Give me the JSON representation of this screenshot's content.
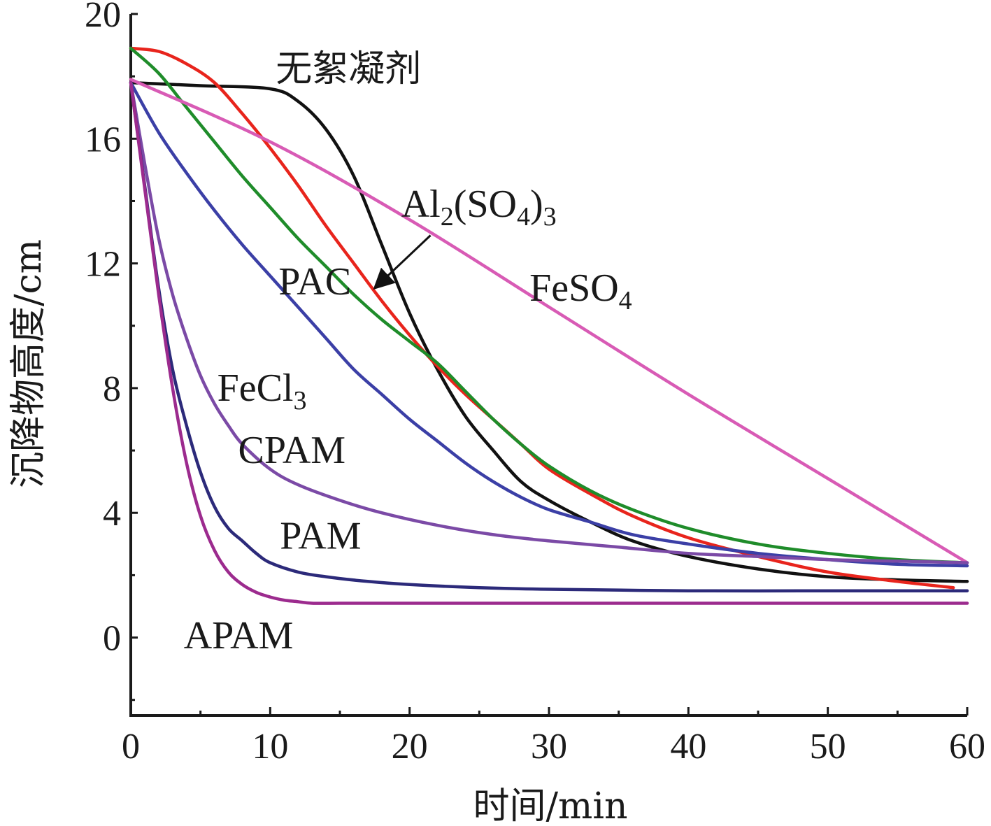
{
  "chart_data": {
    "type": "line",
    "title": "",
    "xlabel": "时间/min",
    "ylabel": "沉降物高度/cm",
    "xlim": [
      0,
      60
    ],
    "ylim": [
      -2.5,
      20
    ],
    "xticks": [
      0,
      10,
      20,
      30,
      40,
      50,
      60
    ],
    "yticks": [
      0,
      4,
      8,
      12,
      16,
      20
    ],
    "grid": false,
    "legend": "none",
    "series": [
      {
        "name": "无絮凝剂",
        "color": "#111111",
        "x": [
          0,
          5,
          10,
          12,
          14,
          16,
          18,
          20,
          22,
          24,
          26,
          28,
          30,
          33,
          36,
          40,
          45,
          50,
          55,
          60
        ],
        "y": [
          17.8,
          17.7,
          17.6,
          17.2,
          16.3,
          14.8,
          12.6,
          10.4,
          8.6,
          7.1,
          6.0,
          5.0,
          4.4,
          3.7,
          3.1,
          2.6,
          2.2,
          1.95,
          1.85,
          1.8
        ]
      },
      {
        "name": "Al2(SO4)3",
        "color": "#e8241c",
        "x": [
          0,
          2,
          4,
          6,
          8,
          10,
          12,
          14,
          16,
          18,
          20,
          22,
          24,
          26,
          28,
          30,
          33,
          36,
          40,
          45,
          50,
          55,
          59
        ],
        "y": [
          18.9,
          18.8,
          18.4,
          17.8,
          16.8,
          15.7,
          14.5,
          13.2,
          12.0,
          10.8,
          9.7,
          8.7,
          7.8,
          7.0,
          6.2,
          5.4,
          4.6,
          3.9,
          3.2,
          2.6,
          2.1,
          1.8,
          1.6
        ]
      },
      {
        "name": "PAC",
        "color": "#1f8c2a",
        "x": [
          0,
          2,
          4,
          6,
          8,
          10,
          12,
          14,
          16,
          18,
          20,
          22,
          24,
          26,
          28,
          30,
          33,
          36,
          40,
          45,
          50,
          55,
          60
        ],
        "y": [
          18.9,
          18.1,
          17.0,
          15.9,
          14.8,
          13.8,
          12.8,
          11.9,
          11.0,
          10.2,
          9.5,
          8.8,
          7.9,
          7.0,
          6.2,
          5.5,
          4.7,
          4.1,
          3.5,
          3.0,
          2.7,
          2.5,
          2.4
        ]
      },
      {
        "name": "FeSO4",
        "color": "#d85bb5",
        "x": [
          0,
          10,
          20,
          30,
          40,
          50,
          60
        ],
        "y": [
          17.9,
          15.9,
          13.4,
          10.6,
          7.8,
          5.1,
          2.4
        ]
      },
      {
        "name": "FeCl3",
        "color": "#3b3fa6",
        "x": [
          0,
          2,
          4,
          6,
          8,
          10,
          12,
          14,
          16,
          18,
          20,
          22,
          24,
          26,
          28,
          30,
          33,
          36,
          40,
          45,
          50,
          55,
          60
        ],
        "y": [
          17.8,
          16.2,
          14.9,
          13.7,
          12.6,
          11.6,
          10.6,
          9.6,
          8.6,
          7.8,
          7.0,
          6.3,
          5.6,
          5.0,
          4.5,
          4.1,
          3.7,
          3.3,
          3.0,
          2.7,
          2.5,
          2.35,
          2.3
        ]
      },
      {
        "name": "CPAM",
        "color": "#7b4aa6",
        "x": [
          0,
          1,
          2,
          3,
          4,
          5,
          6,
          7,
          8,
          10,
          12,
          15,
          18,
          22,
          26,
          30,
          35,
          40,
          45,
          50,
          55,
          60
        ],
        "y": [
          17.8,
          15.2,
          12.8,
          11.0,
          9.6,
          8.4,
          7.5,
          6.8,
          6.2,
          5.4,
          4.9,
          4.4,
          4.0,
          3.6,
          3.3,
          3.1,
          2.9,
          2.7,
          2.6,
          2.5,
          2.45,
          2.4
        ]
      },
      {
        "name": "PAM",
        "color": "#2c2a7a",
        "x": [
          0,
          1,
          2,
          3,
          4,
          5,
          6,
          7,
          8,
          9,
          10,
          12,
          14,
          17,
          20,
          25,
          30,
          40,
          50,
          60
        ],
        "y": [
          17.8,
          14.5,
          11.2,
          8.6,
          6.8,
          5.3,
          4.2,
          3.5,
          3.1,
          2.7,
          2.4,
          2.1,
          1.95,
          1.8,
          1.7,
          1.6,
          1.55,
          1.5,
          1.5,
          1.5
        ]
      },
      {
        "name": "APAM",
        "color": "#9c2b8e",
        "x": [
          0,
          1,
          2,
          3,
          4,
          5,
          6,
          7,
          8,
          9,
          10,
          11,
          12,
          13,
          15,
          20,
          30,
          40,
          50,
          60
        ],
        "y": [
          17.8,
          14.4,
          11.0,
          8.0,
          5.6,
          3.9,
          2.8,
          2.1,
          1.7,
          1.45,
          1.3,
          1.2,
          1.15,
          1.1,
          1.1,
          1.1,
          1.1,
          1.1,
          1.1,
          1.1
        ]
      }
    ],
    "annotations": [
      {
        "text": "无絮凝剂",
        "x": 10.4,
        "y": 17.85
      },
      {
        "text": "PAC",
        "x": 10.6,
        "y": 11.0
      },
      {
        "text": "FeSO4",
        "x": 28.6,
        "y": 10.8
      },
      {
        "text": "FeCl3",
        "x": 6.2,
        "y": 7.6
      },
      {
        "text": "CPAM",
        "x": 7.7,
        "y": 5.6
      },
      {
        "text": "PAM",
        "x": 10.7,
        "y": 2.85
      },
      {
        "text": "APAM",
        "x": 3.8,
        "y": -0.35
      }
    ],
    "al_label": {
      "main": "Al",
      "sub1": "2",
      "mid": "(SO",
      "sub2": "4",
      "close": ")",
      "sub3": "3",
      "x": 19.4,
      "y": 13.5
    }
  }
}
